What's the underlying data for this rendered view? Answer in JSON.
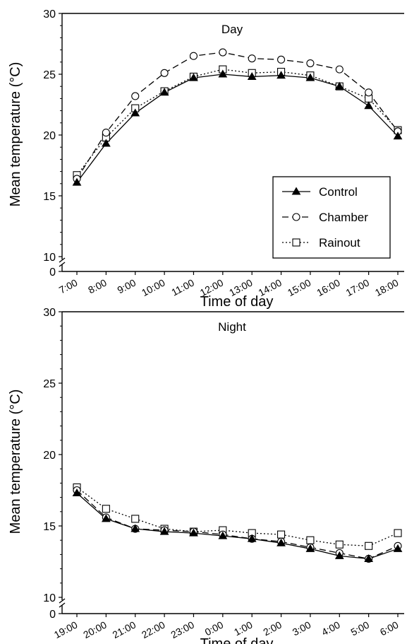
{
  "chart_data": [
    {
      "type": "line",
      "title": "Day",
      "xlabel": "Time of day",
      "ylabel": "Mean temperature (°C)",
      "categories": [
        "7:00",
        "8:00",
        "9:00",
        "10:00",
        "11:00",
        "12:00",
        "13:00",
        "14:00",
        "15:00",
        "16:00",
        "17:00",
        "18:00"
      ],
      "ylim": [
        10,
        30
      ],
      "y_axis_break": true,
      "yticks": [
        "0",
        "10",
        "15",
        "20",
        "25",
        "30"
      ],
      "grid": false,
      "legend_position": "center-right",
      "series": [
        {
          "name": "Control",
          "marker": "filled-triangle",
          "line": "solid",
          "values": [
            16.1,
            19.3,
            21.8,
            23.5,
            24.7,
            25.0,
            24.8,
            24.9,
            24.7,
            24.0,
            22.4,
            19.9
          ]
        },
        {
          "name": "Chamber",
          "marker": "open-circle",
          "line": "dashed",
          "values": [
            16.4,
            20.2,
            23.2,
            25.1,
            26.5,
            26.8,
            26.3,
            26.2,
            25.9,
            25.4,
            23.5,
            20.3
          ]
        },
        {
          "name": "Rainout",
          "marker": "open-square",
          "line": "dotted",
          "values": [
            16.7,
            19.8,
            22.2,
            23.6,
            24.8,
            25.4,
            25.1,
            25.2,
            24.9,
            24.0,
            23.0,
            20.4
          ]
        }
      ]
    },
    {
      "type": "line",
      "title": "Night",
      "xlabel": "Time of day",
      "ylabel": "Mean temperature (°C)",
      "categories": [
        "19:00",
        "20:00",
        "21:00",
        "22:00",
        "23:00",
        "0:00",
        "1:00",
        "2:00",
        "3:00",
        "4:00",
        "5:00",
        "6:00"
      ],
      "ylim": [
        10,
        30
      ],
      "y_axis_break": true,
      "yticks": [
        "0",
        "10",
        "15",
        "20",
        "25",
        "30"
      ],
      "grid": false,
      "series": [
        {
          "name": "Control",
          "marker": "filled-triangle",
          "line": "solid",
          "values": [
            17.3,
            15.5,
            14.8,
            14.6,
            14.5,
            14.3,
            14.1,
            13.8,
            13.4,
            12.9,
            12.7,
            13.4
          ]
        },
        {
          "name": "Chamber",
          "marker": "open-circle",
          "line": "dashed",
          "values": [
            17.5,
            15.6,
            14.8,
            14.7,
            14.6,
            14.4,
            14.1,
            13.9,
            13.5,
            13.1,
            12.7,
            13.6
          ]
        },
        {
          "name": "Rainout",
          "marker": "open-square",
          "line": "dotted",
          "values": [
            17.7,
            16.2,
            15.5,
            14.8,
            14.6,
            14.7,
            14.5,
            14.4,
            14.0,
            13.7,
            13.6,
            14.5
          ]
        }
      ]
    }
  ]
}
